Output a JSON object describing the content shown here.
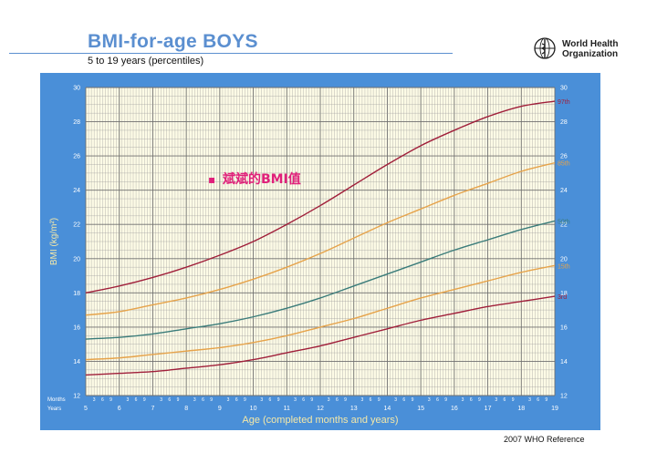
{
  "header": {
    "title": "BMI-for-age  BOYS",
    "subtitle": "5 to 19 years (percentiles)",
    "org_line1": "World Health",
    "org_line2": "Organization",
    "logo_icon": "who-emblem-icon"
  },
  "footer": {
    "reference": "2007  WHO Reference"
  },
  "colors": {
    "panel": "#4a8fd8",
    "plot_bg": "#fdfbe6",
    "grid": "#9a9a9a",
    "p97": "#a01f3a",
    "p85": "#e6a34a",
    "p50": "#3a7c7a",
    "p15": "#e6a34a",
    "p3": "#a01f3a",
    "annotation": "#e0207a",
    "axis_title": "#f4e8a8"
  },
  "chart_data": {
    "type": "line",
    "xlabel": "Age (completed months and years)",
    "ylabel": "BMI (kg/m²)",
    "xlim": [
      5,
      19
    ],
    "ylim": [
      12,
      30
    ],
    "x_ticks": [
      "5",
      "6",
      "7",
      "8",
      "9",
      "10",
      "11",
      "12",
      "13",
      "14",
      "15",
      "16",
      "17",
      "18",
      "19"
    ],
    "y_ticks": [
      "12",
      "14",
      "16",
      "18",
      "20",
      "22",
      "24",
      "26",
      "28",
      "30"
    ],
    "month_tick_labels": [
      "3",
      "6",
      "9"
    ],
    "months_row_label": "Months",
    "years_row_label": "Years",
    "x": [
      5,
      6,
      7,
      8,
      9,
      10,
      11,
      12,
      13,
      14,
      15,
      16,
      17,
      18,
      19
    ],
    "series": [
      {
        "name": "97th",
        "values": [
          18.0,
          18.4,
          18.9,
          19.5,
          20.2,
          21.0,
          22.0,
          23.1,
          24.3,
          25.5,
          26.6,
          27.5,
          28.3,
          28.9,
          29.2
        ]
      },
      {
        "name": "85th",
        "values": [
          16.7,
          16.9,
          17.3,
          17.7,
          18.2,
          18.8,
          19.5,
          20.3,
          21.2,
          22.1,
          22.9,
          23.7,
          24.4,
          25.1,
          25.6
        ]
      },
      {
        "name": "50th",
        "values": [
          15.3,
          15.4,
          15.6,
          15.9,
          16.2,
          16.6,
          17.1,
          17.7,
          18.4,
          19.1,
          19.8,
          20.5,
          21.1,
          21.7,
          22.2
        ]
      },
      {
        "name": "15th",
        "values": [
          14.1,
          14.2,
          14.4,
          14.6,
          14.8,
          15.1,
          15.5,
          16.0,
          16.5,
          17.1,
          17.7,
          18.2,
          18.7,
          19.2,
          19.6
        ]
      },
      {
        "name": "3rd",
        "values": [
          13.2,
          13.3,
          13.4,
          13.6,
          13.8,
          14.1,
          14.5,
          14.9,
          15.4,
          15.9,
          16.4,
          16.8,
          17.2,
          17.5,
          17.8
        ]
      }
    ],
    "annotation": {
      "marker": "▪",
      "text": "斌斌的BMI值"
    },
    "grid": true
  }
}
